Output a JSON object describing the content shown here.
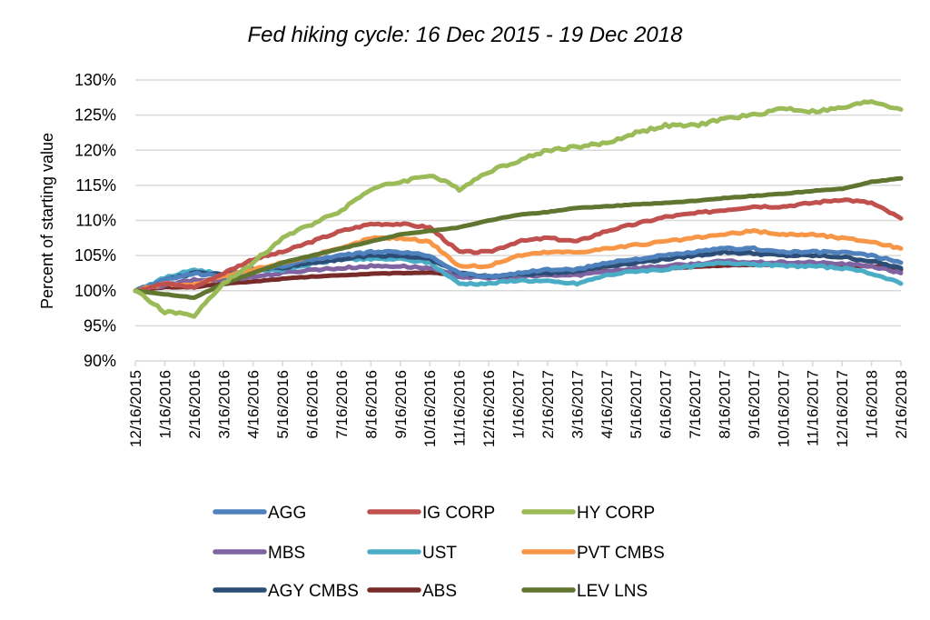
{
  "chart_data": {
    "type": "line",
    "title": "Fed hiking cycle: 16 Dec 2015 - 19 Dec 2018",
    "xlabel": "",
    "ylabel": "Percent of starting value",
    "ylim": [
      90,
      130
    ],
    "yticks": [
      90,
      95,
      100,
      105,
      110,
      115,
      120,
      125,
      130
    ],
    "ytick_labels": [
      "90%",
      "95%",
      "100%",
      "105%",
      "110%",
      "115%",
      "120%",
      "125%",
      "130%"
    ],
    "grid": true,
    "legend_position": "bottom",
    "x": [
      "12/16/2015",
      "1/16/2016",
      "2/16/2016",
      "3/16/2016",
      "4/16/2016",
      "5/16/2016",
      "6/16/2016",
      "7/16/2016",
      "8/16/2016",
      "9/16/2016",
      "10/16/2016",
      "11/16/2016",
      "12/16/2016",
      "1/16/2017",
      "2/16/2017",
      "3/16/2017",
      "4/16/2017",
      "5/16/2017",
      "6/16/2017",
      "7/16/2017",
      "8/16/2017",
      "9/16/2017",
      "10/16/2017",
      "11/16/2017",
      "12/16/2017",
      "1/16/2018",
      "2/16/2018"
    ],
    "series": [
      {
        "name": "AGG",
        "color": "#4f81bd",
        "values": [
          100,
          101.5,
          102.5,
          102,
          103,
          103.5,
          104.5,
          105,
          105.5,
          105.5,
          105,
          102.5,
          102,
          102.5,
          103,
          103,
          104,
          104.5,
          105,
          105.5,
          106,
          106,
          105.5,
          105.5,
          105.5,
          105,
          104
        ]
      },
      {
        "name": "IG CORP",
        "color": "#c0504d",
        "values": [
          100,
          101,
          100.5,
          102.5,
          104.5,
          105.5,
          107,
          108.5,
          109.5,
          109.5,
          109,
          105.5,
          105.5,
          107,
          107.5,
          107,
          108.5,
          109.5,
          110.5,
          111,
          111.5,
          112,
          112,
          112.5,
          113,
          112.5,
          110.3
        ]
      },
      {
        "name": "HY CORP",
        "color": "#9bbb59",
        "values": [
          100,
          97,
          96.5,
          101,
          104,
          107.5,
          109.5,
          111.5,
          114.5,
          115.5,
          116.5,
          114.5,
          117,
          118.5,
          120,
          120.5,
          121,
          122.5,
          123.5,
          123.5,
          124.5,
          125,
          126,
          125.5,
          126,
          127,
          125.8
        ]
      },
      {
        "name": "MBS",
        "color": "#8064a2",
        "values": [
          100,
          100.8,
          101.5,
          101.5,
          102,
          102.5,
          103,
          103.2,
          103.5,
          103.5,
          103.2,
          102,
          101.8,
          102,
          102.2,
          102.2,
          102.8,
          103.2,
          103.5,
          103.8,
          104.2,
          104,
          104,
          104,
          103.8,
          103.5,
          102.5
        ]
      },
      {
        "name": "UST",
        "color": "#4bacc6",
        "values": [
          100,
          101.8,
          103,
          102.3,
          103,
          103,
          103.8,
          104.5,
          104.5,
          104.5,
          104,
          101,
          101,
          101.5,
          101.3,
          101,
          102.2,
          102.8,
          103,
          103.5,
          104,
          103.8,
          103.5,
          103.5,
          103.2,
          102.5,
          101
        ]
      },
      {
        "name": "PVT CMBS",
        "color": "#f79646",
        "values": [
          100,
          101,
          100.8,
          102,
          103,
          104,
          105,
          106,
          107.5,
          107.5,
          107,
          103.5,
          103.5,
          105,
          105.5,
          105.5,
          106,
          106.5,
          107,
          107.5,
          108,
          108.5,
          108,
          108,
          107.5,
          107,
          106
        ]
      },
      {
        "name": "AGY CMBS",
        "color": "#2c4d75",
        "values": [
          100,
          101.5,
          102.5,
          102.3,
          103,
          103.3,
          104,
          104.5,
          105,
          105,
          104.5,
          102.5,
          102,
          102.3,
          102.5,
          102.8,
          103.5,
          104,
          104.5,
          105,
          105.5,
          105.3,
          105,
          105,
          104.8,
          104.2,
          103.2
        ]
      },
      {
        "name": "ABS",
        "color": "#772c2a",
        "values": [
          100,
          100.5,
          100.5,
          101,
          101.3,
          101.7,
          102,
          102.2,
          102.4,
          102.5,
          102.6,
          102.2,
          102,
          102.2,
          102.4,
          102.6,
          102.8,
          103,
          103.2,
          103.4,
          103.6,
          103.7,
          103.7,
          103.7,
          103.6,
          103.5,
          103
        ]
      },
      {
        "name": "LEV LNS",
        "color": "#5f7530",
        "values": [
          100,
          99.5,
          99,
          101,
          102.5,
          104,
          105,
          106,
          107,
          108,
          108.5,
          109,
          110,
          110.8,
          111.2,
          111.8,
          112,
          112.3,
          112.5,
          112.8,
          113.2,
          113.5,
          113.8,
          114.2,
          114.5,
          115.5,
          116
        ]
      }
    ],
    "draw_order": [
      "ABS",
      "MBS",
      "UST",
      "AGY CMBS",
      "AGG",
      "PVT CMBS",
      "IG CORP",
      "LEV LNS",
      "HY CORP"
    ],
    "gridline_color": "#d9d9d9",
    "axis_color": "#d9d9d9"
  }
}
